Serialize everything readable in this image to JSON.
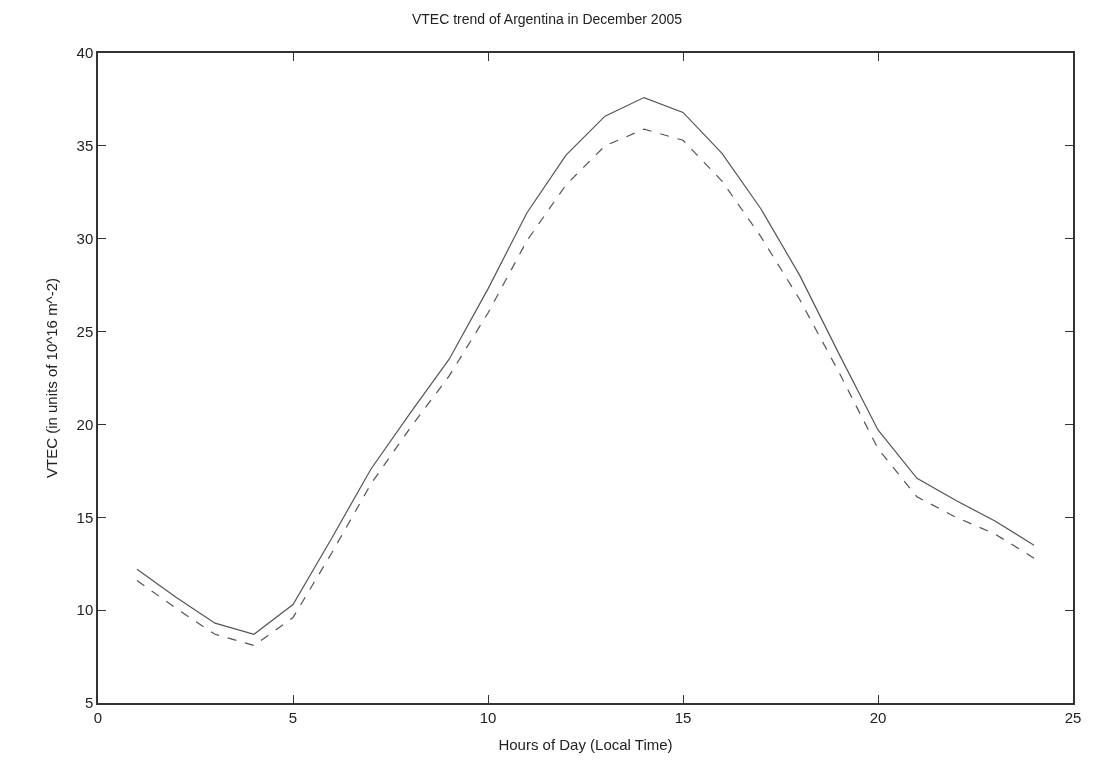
{
  "chart_data": {
    "type": "line",
    "title": "VTEC trend of Argentina in December 2005",
    "xlabel": "Hours of Day (Local Time)",
    "ylabel": "VTEC (in units of 10^16 m^-2)",
    "x": [
      1,
      2,
      3,
      4,
      5,
      6,
      7,
      8,
      9,
      10,
      11,
      12,
      13,
      14,
      15,
      16,
      17,
      18,
      19,
      20,
      21,
      22,
      23,
      24
    ],
    "series": [
      {
        "color": "#555555",
        "line_style": "solid",
        "values": [
          12.2,
          10.7,
          9.3,
          8.7,
          10.3,
          13.9,
          17.6,
          20.6,
          23.5,
          27.3,
          31.4,
          34.5,
          36.6,
          37.6,
          36.8,
          34.6,
          31.6,
          28.0,
          23.8,
          19.7,
          17.1,
          15.9,
          14.8,
          13.5
        ]
      },
      {
        "color": "#555555",
        "line_style": "dashed",
        "values": [
          11.6,
          10.1,
          8.7,
          8.1,
          9.6,
          13.1,
          16.8,
          19.8,
          22.6,
          26.0,
          29.9,
          32.9,
          35.0,
          35.9,
          35.3,
          33.1,
          30.1,
          26.7,
          22.8,
          18.7,
          16.1,
          15.0,
          14.1,
          12.8
        ]
      }
    ],
    "xlim": [
      0,
      25
    ],
    "xticks": [
      0,
      5,
      10,
      15,
      20,
      25
    ],
    "ylim": [
      5,
      40
    ],
    "yticks": [
      5,
      10,
      15,
      20,
      25,
      30,
      35,
      40
    ],
    "marker": "none"
  }
}
